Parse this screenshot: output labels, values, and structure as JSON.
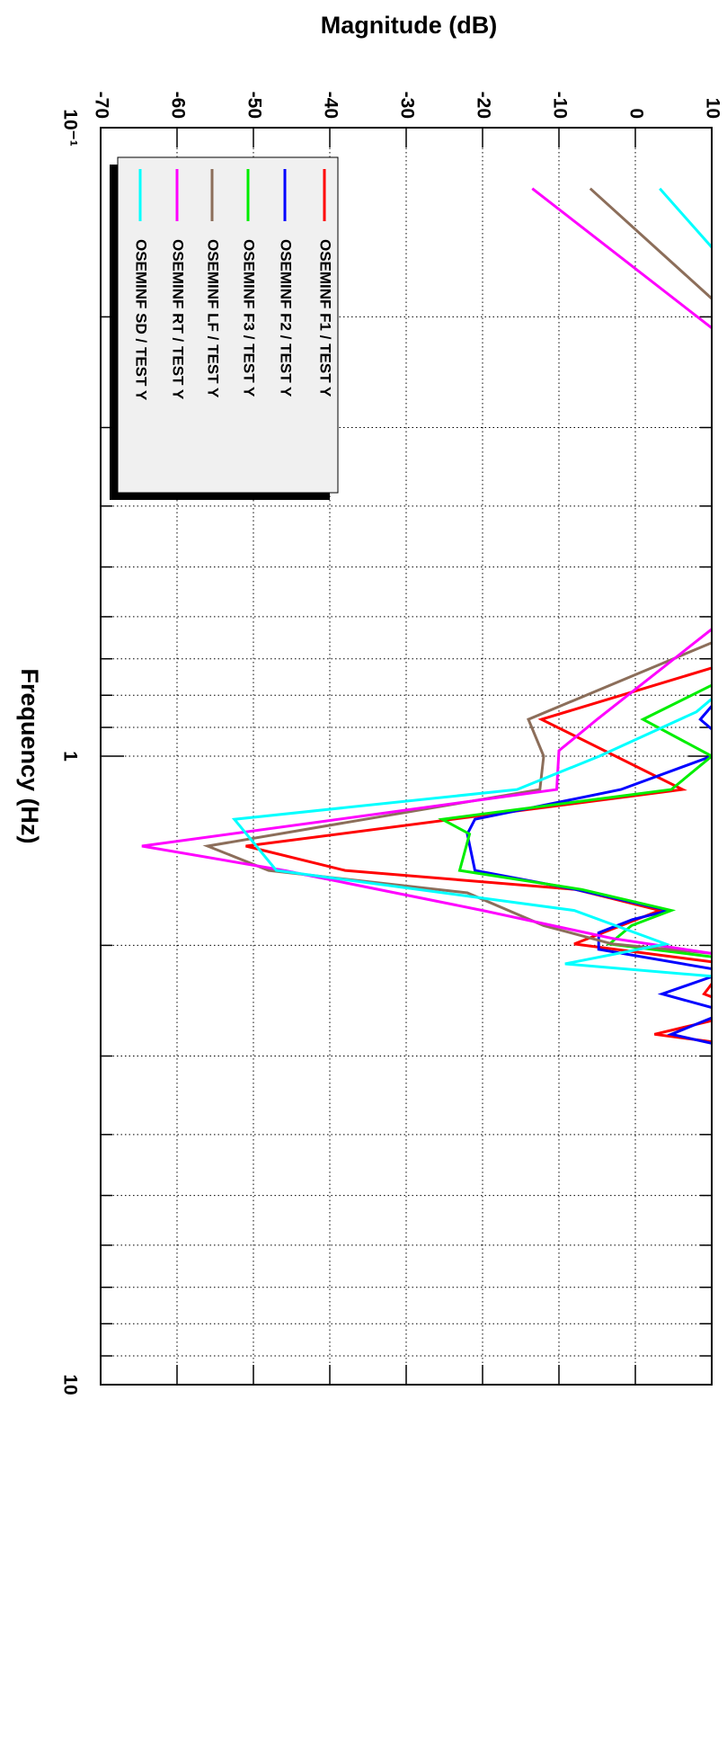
{
  "chart_data": {
    "type": "line",
    "xlabel": "Frequency (Hz)",
    "ylabel": "Magnitude (dB)",
    "xscale": "log",
    "xlim": [
      0.1,
      10
    ],
    "xticks": [
      {
        "value": 0.1,
        "label": "10⁻¹"
      },
      1,
      10
    ],
    "xminor_ticks": [
      0.2,
      0.3,
      0.4,
      0.5,
      0.6,
      0.7,
      0.8,
      0.9,
      2,
      3,
      4,
      5,
      6,
      7,
      8,
      9
    ],
    "ylim": [
      -70,
      10
    ],
    "yticks": [
      -70,
      -60,
      -50,
      -40,
      -30,
      -20,
      -10,
      0,
      10
    ],
    "grid": true,
    "legend": "upper left",
    "series": [
      {
        "name": "OSEMINF F1 / TEST Y",
        "color": "#ff0000",
        "x": [
          0.7,
          0.874,
          1.13,
          1.39,
          1.52,
          1.63,
          1.76,
          1.99,
          2.14,
          2.39,
          2.55,
          2.77,
          2.9
        ],
        "values": [
          14,
          -12.3,
          6.2,
          -51,
          -38,
          -7.8,
          3.2,
          -8,
          12,
          9,
          15,
          2.5,
          15
        ]
      },
      {
        "name": "OSEMINF F2 / TEST Y",
        "color": "#0000ff",
        "x": [
          0.78,
          0.874,
          0.95,
          1.0,
          1.13,
          1.26,
          1.33,
          1.52,
          1.63,
          1.76,
          1.82,
          1.91,
          2.03,
          2.2,
          2.39,
          2.55,
          2.77,
          2.9
        ],
        "values": [
          12,
          8.5,
          12,
          10,
          -1.9,
          -21,
          -22,
          -21,
          -7.8,
          4.4,
          -0.4,
          -4.8,
          -4.8,
          12,
          3.5,
          12,
          4.7,
          12
        ]
      },
      {
        "name": "OSEMINF F3 / TEST Y",
        "color": "#00ee00",
        "x": [
          0.75,
          0.874,
          1.0,
          1.13,
          1.26,
          1.33,
          1.52,
          1.63,
          1.76,
          1.86,
          1.99,
          2.1
        ],
        "values": [
          12,
          1.0,
          10,
          4.7,
          -25.3,
          -21.7,
          -23,
          -7,
          4.7,
          -0.5,
          -3.4,
          12
        ]
      },
      {
        "name": "OSEMINF LF / TEST Y",
        "color": "#8c6e5a",
        "x": [
          0.125,
          0.4,
          0.66,
          0.874,
          1.0,
          1.13,
          1.39,
          1.52,
          1.65,
          1.86,
          1.99,
          2.06
        ],
        "values": [
          -5.9,
          40,
          10,
          -14,
          -12,
          -12.5,
          -56,
          -48,
          -22,
          -12,
          -3,
          10
        ]
      },
      {
        "name": "OSEMINF RT / TEST Y",
        "color": "#ff00ff",
        "x": [
          0.125,
          0.4,
          0.628,
          0.874,
          0.98,
          1.13,
          1.39,
          1.52,
          1.76,
          1.95,
          2.06
        ],
        "values": [
          -13.5,
          40,
          10,
          -5,
          -10,
          -10.3,
          -64.6,
          -46,
          -20,
          -3,
          10
        ]
      },
      {
        "name": "OSEMINF SD / TEST Y",
        "color": "#00ffff",
        "x": [
          0.125,
          0.4,
          0.85,
          1.0,
          1.13,
          1.26,
          1.52,
          1.76,
          1.99,
          2.14,
          2.25
        ],
        "values": [
          3.2,
          40,
          8,
          -4.7,
          -15.5,
          -52.5,
          -47,
          -8,
          4,
          -9.2,
          12
        ]
      }
    ]
  }
}
